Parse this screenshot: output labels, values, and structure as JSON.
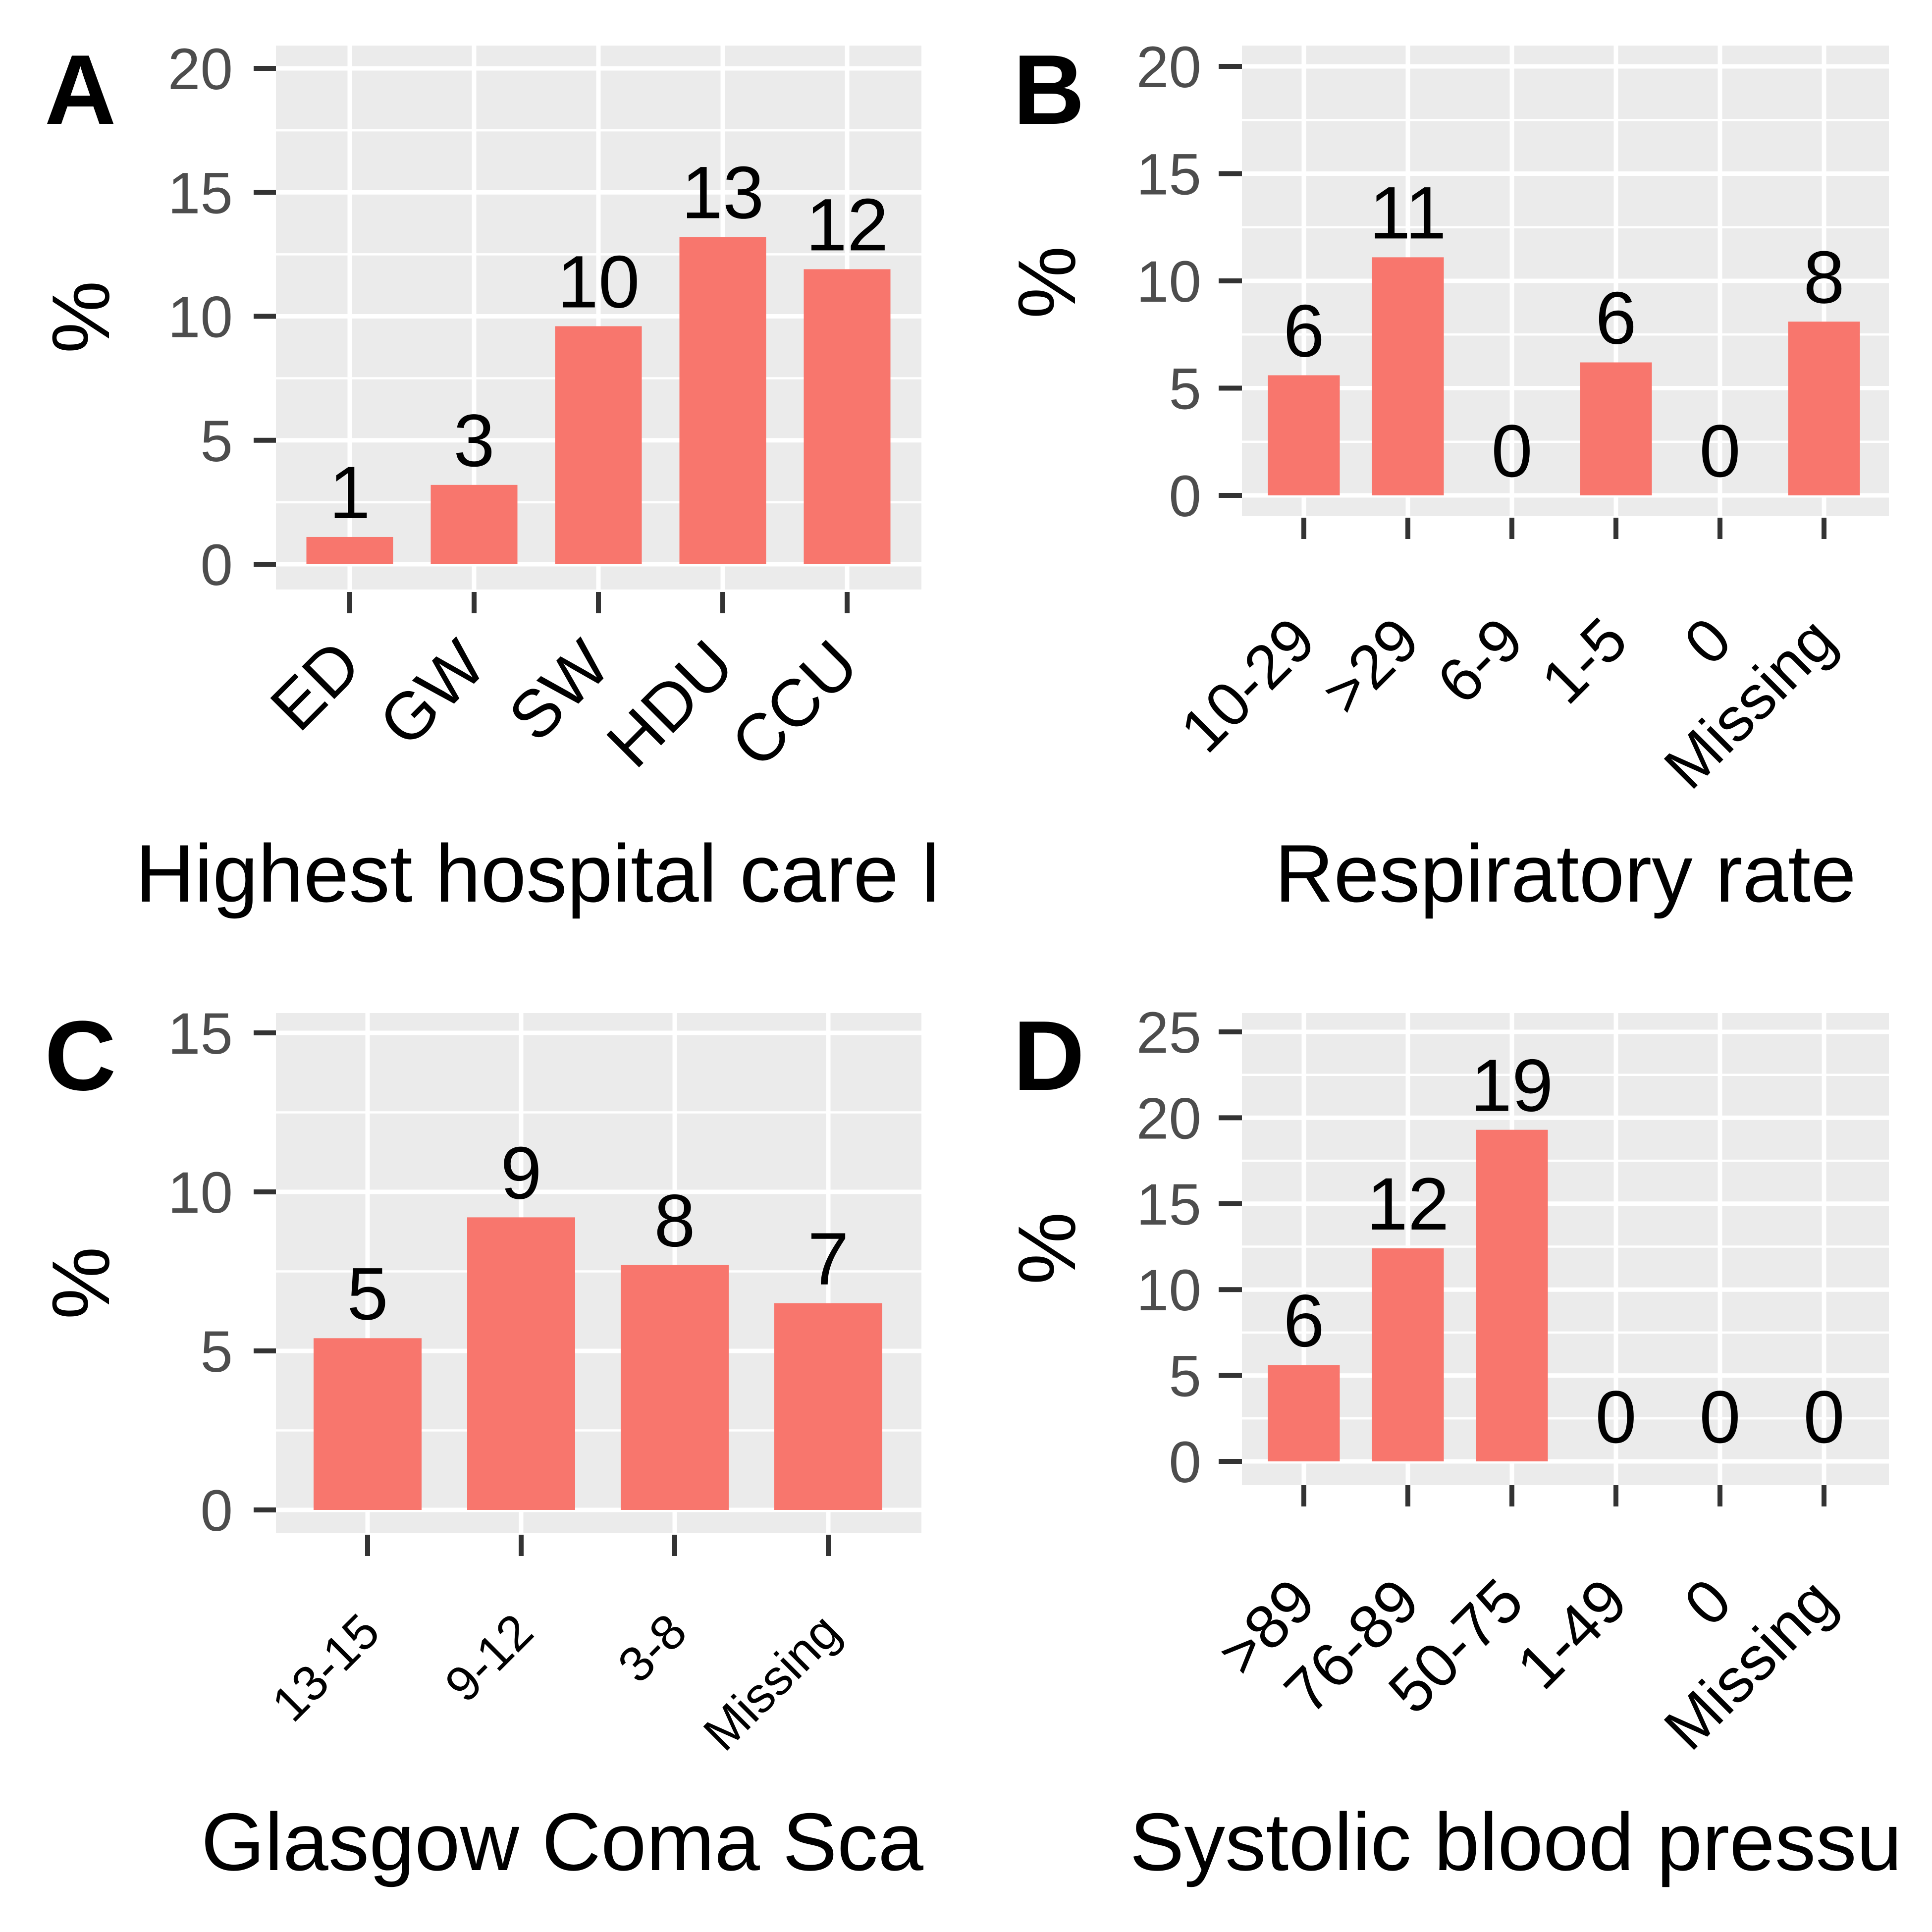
{
  "colors": {
    "bar": "#f8766d",
    "panel_background": "#ebebeb",
    "grid": "#ffffff",
    "tick": "#333333",
    "tick_label": "#4d4d4d"
  },
  "chart_data": [
    {
      "panel": "A",
      "type": "bar",
      "categories": [
        "ED",
        "GW",
        "SW",
        "HDU",
        "CCU"
      ],
      "values": [
        1.1,
        3.2,
        9.6,
        13.2,
        11.9
      ],
      "labels": [
        "1",
        "3",
        "10",
        "13",
        "12"
      ],
      "ylabel": "%",
      "xlabel": "Highest hospital care l",
      "ylim": [
        0,
        20
      ],
      "yticks": [
        0,
        5,
        10,
        15,
        20
      ],
      "grid": true
    },
    {
      "panel": "B",
      "type": "bar",
      "categories": [
        "10-29",
        ">29",
        "6-9",
        "1-5",
        "0",
        "Missing"
      ],
      "values": [
        5.6,
        11.1,
        0,
        6.2,
        0,
        8.1
      ],
      "labels": [
        "6",
        "11",
        "0",
        "6",
        "0",
        "8"
      ],
      "ylabel": "%",
      "xlabel": "Respiratory rate",
      "ylim": [
        0,
        20
      ],
      "yticks": [
        0,
        5,
        10,
        15,
        20
      ],
      "grid": true
    },
    {
      "panel": "C",
      "type": "bar",
      "categories": [
        "13-15",
        "9-12",
        "3-8",
        "Missing"
      ],
      "values": [
        5.4,
        9.2,
        7.7,
        6.5
      ],
      "labels": [
        "5",
        "9",
        "8",
        "7"
      ],
      "ylabel": "%",
      "xlabel": "Glasgow Coma Sca",
      "ylim": [
        0,
        15
      ],
      "yticks": [
        0,
        5,
        10,
        15
      ],
      "grid": true
    },
    {
      "panel": "D",
      "type": "bar",
      "categories": [
        ">89",
        "76-89",
        "50-75",
        "1-49",
        "0",
        "Missing"
      ],
      "values": [
        5.6,
        12.4,
        19.3,
        0,
        0,
        0
      ],
      "labels": [
        "6",
        "12",
        "19",
        "0",
        "0",
        "0"
      ],
      "ylabel": "%",
      "xlabel": "Systolic blood pressu",
      "ylim": [
        0,
        25
      ],
      "yticks": [
        0,
        5,
        10,
        15,
        20,
        25
      ],
      "grid": true
    }
  ]
}
